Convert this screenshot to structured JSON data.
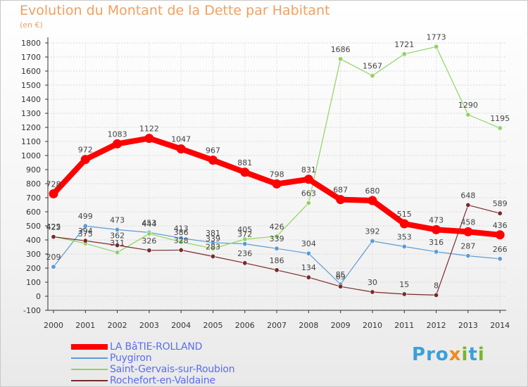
{
  "header": {
    "title": "Evolution du Montant de la Dette par Habitant",
    "unit": "(en €)"
  },
  "logo": {
    "text": "Proxiti"
  },
  "chart_data": {
    "type": "line",
    "title": "Evolution du Montant de la Dette par Habitant",
    "subtitle": "(en €)",
    "xlabel": "",
    "ylabel": "",
    "x": [
      2000,
      2001,
      2002,
      2003,
      2004,
      2005,
      2006,
      2007,
      2008,
      2009,
      2010,
      2011,
      2012,
      2013,
      2014
    ],
    "ylim": [
      -100,
      1800
    ],
    "yticks": [
      -100,
      0,
      100,
      200,
      300,
      400,
      500,
      600,
      700,
      800,
      900,
      1000,
      1100,
      1200,
      1300,
      1400,
      1500,
      1600,
      1700,
      1800
    ],
    "grid": true,
    "legend_position": "bottom-left",
    "series": [
      {
        "name": "LA BâTIE-ROLLAND",
        "color": "#ff0000",
        "emphasis": true,
        "values": [
          728,
          972,
          1083,
          1122,
          1047,
          967,
          881,
          798,
          831,
          687,
          680,
          515,
          473,
          458,
          436
        ]
      },
      {
        "name": "Puygiron",
        "color": "#5b9bd5",
        "emphasis": false,
        "values": [
          209,
          499,
          473,
          453,
          413,
          381,
          372,
          339,
          304,
          85,
          392,
          353,
          316,
          287,
          266
        ]
      },
      {
        "name": "Saint-Gervais-sur-Roubion",
        "color": "#8fd460",
        "emphasis": false,
        "values": [
          425,
          375,
          311,
          444,
          386,
          339,
          405,
          426,
          663,
          1686,
          1567,
          1721,
          1773,
          1290,
          1195
        ]
      },
      {
        "name": "Rochefort-en-Valdaine",
        "color": "#7a2a2a",
        "emphasis": false,
        "values": [
          422,
          394,
          362,
          326,
          328,
          283,
          236,
          186,
          134,
          69,
          30,
          15,
          8,
          648,
          589
        ]
      }
    ]
  }
}
